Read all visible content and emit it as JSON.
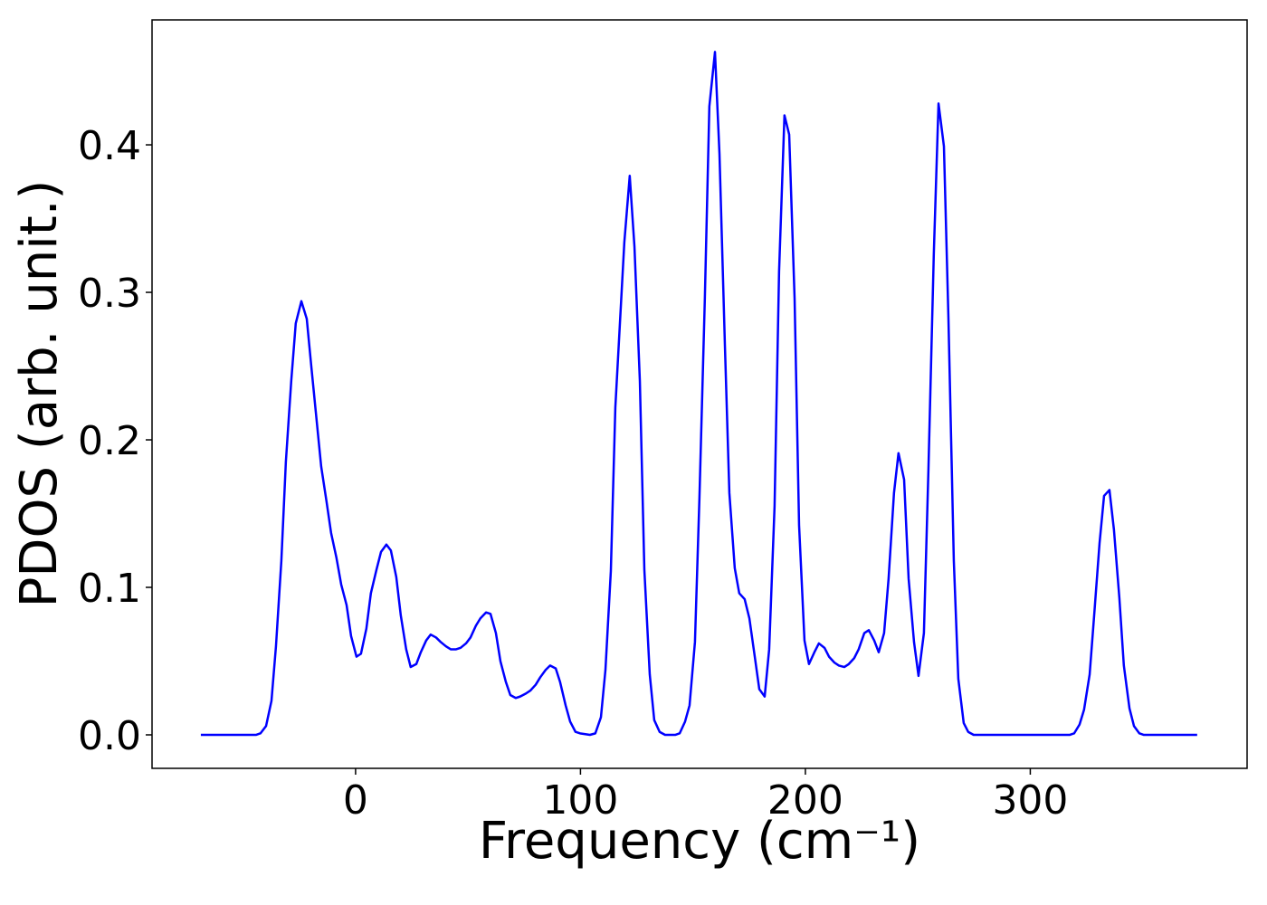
{
  "chart_data": {
    "type": "line",
    "xlabel": "Frequency (cm⁻¹)",
    "ylabel": "PDOS (arb. unit.)",
    "xlim": [
      -90.5,
      396.4
    ],
    "ylim": [
      -0.0227,
      0.4847
    ],
    "xticks": [
      0,
      100,
      200,
      300
    ],
    "yticks": [
      {
        "value": 0,
        "label": "0.0"
      },
      0.1,
      0.2,
      0.3,
      0.4
    ],
    "grid": false,
    "x": [
      -68.8,
      -44.3,
      -42.3,
      -39.8,
      -37.4,
      -35.4,
      -33.0,
      -31.0,
      -28.6,
      -26.6,
      -24.1,
      -21.7,
      -19.7,
      -17.3,
      -15.3,
      -12.9,
      -10.9,
      -8.5,
      -6.4,
      -4.0,
      -2.0,
      0.4,
      2.4,
      4.8,
      6.8,
      9.3,
      11.3,
      13.7,
      15.7,
      18.1,
      20.1,
      22.5,
      24.5,
      27.0,
      29.0,
      31.4,
      33.4,
      35.8,
      37.8,
      40.2,
      42.3,
      44.7,
      46.7,
      49.1,
      51.1,
      53.5,
      55.5,
      58.0,
      60.0,
      62.4,
      64.4,
      66.8,
      68.8,
      71.2,
      73.2,
      75.7,
      77.7,
      80.1,
      82.1,
      84.5,
      86.5,
      89.0,
      90.9,
      93.4,
      95.4,
      97.8,
      99.8,
      104.2,
      106.6,
      109.1,
      111.1,
      113.5,
      115.5,
      119.5,
      121.9,
      124.0,
      126.4,
      128.4,
      130.8,
      132.8,
      135.2,
      137.6,
      142.1,
      144.1,
      146.5,
      148.5,
      150.9,
      152.9,
      155.3,
      157.3,
      159.8,
      161.8,
      164.2,
      166.2,
      168.6,
      170.6,
      173.0,
      175.1,
      177.5,
      179.5,
      181.9,
      183.9,
      186.3,
      188.3,
      190.7,
      192.8,
      195.2,
      197.2,
      199.6,
      201.6,
      204.0,
      206.0,
      208.5,
      210.5,
      212.9,
      214.9,
      217.3,
      219.3,
      221.7,
      223.7,
      226.2,
      228.2,
      230.6,
      232.6,
      235.0,
      237.0,
      239.4,
      241.4,
      243.9,
      245.9,
      248.3,
      250.3,
      252.7,
      254.7,
      257.1,
      259.2,
      261.6,
      263.6,
      266.0,
      268.0,
      270.4,
      272.4,
      274.8,
      317.5,
      319.5,
      321.9,
      323.9,
      326.4,
      328.4,
      330.8,
      332.8,
      335.2,
      337.2,
      339.6,
      341.6,
      344.1,
      346.1,
      348.5,
      350.5,
      374.2
    ],
    "series": [
      {
        "color": "#0000ff",
        "values": [
          0,
          0,
          0.001,
          0.006,
          0.023,
          0.06,
          0.118,
          0.185,
          0.24,
          0.279,
          0.294,
          0.282,
          0.25,
          0.213,
          0.182,
          0.158,
          0.137,
          0.12,
          0.102,
          0.088,
          0.067,
          0.053,
          0.055,
          0.072,
          0.096,
          0.112,
          0.124,
          0.129,
          0.125,
          0.107,
          0.081,
          0.058,
          0.046,
          0.048,
          0.056,
          0.064,
          0.068,
          0.066,
          0.063,
          0.06,
          0.058,
          0.058,
          0.059,
          0.062,
          0.066,
          0.074,
          0.079,
          0.083,
          0.082,
          0.069,
          0.05,
          0.036,
          0.027,
          0.025,
          0.026,
          0.028,
          0.03,
          0.034,
          0.039,
          0.044,
          0.047,
          0.045,
          0.036,
          0.02,
          0.009,
          0.002,
          0.001,
          0,
          0.001,
          0.012,
          0.044,
          0.111,
          0.222,
          0.334,
          0.379,
          0.331,
          0.24,
          0.112,
          0.041,
          0.01,
          0.002,
          0,
          0,
          0.001,
          0.009,
          0.02,
          0.063,
          0.161,
          0.296,
          0.426,
          0.463,
          0.394,
          0.265,
          0.164,
          0.113,
          0.096,
          0.092,
          0.079,
          0.053,
          0.031,
          0.026,
          0.058,
          0.155,
          0.314,
          0.42,
          0.407,
          0.296,
          0.142,
          0.064,
          0.048,
          0.056,
          0.062,
          0.059,
          0.053,
          0.049,
          0.047,
          0.046,
          0.048,
          0.052,
          0.058,
          0.069,
          0.071,
          0.064,
          0.056,
          0.069,
          0.106,
          0.164,
          0.191,
          0.173,
          0.106,
          0.063,
          0.04,
          0.069,
          0.179,
          0.326,
          0.428,
          0.399,
          0.283,
          0.118,
          0.038,
          0.008,
          0.002,
          0,
          0,
          0.001,
          0.007,
          0.017,
          0.041,
          0.081,
          0.13,
          0.162,
          0.166,
          0.139,
          0.093,
          0.047,
          0.018,
          0.006,
          0.001,
          0,
          0
        ]
      }
    ]
  }
}
